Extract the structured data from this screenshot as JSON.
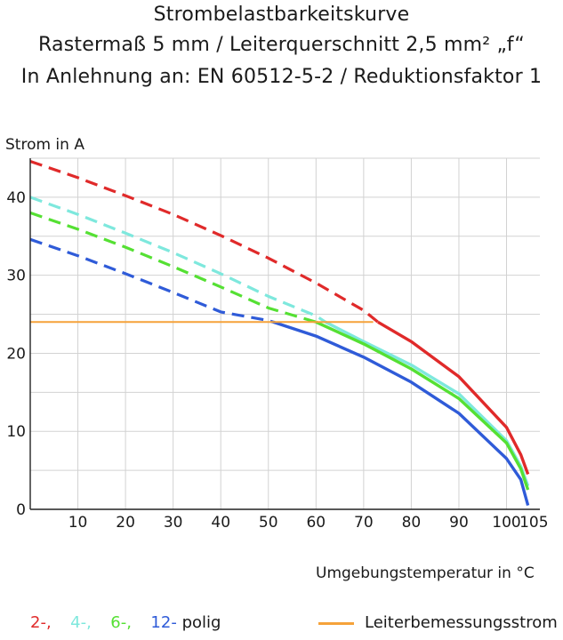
{
  "header": {
    "line1": "Strombelastbarkeitskurve",
    "line2": "Rastermaß 5 mm / Leiterquerschnitt 2,5 mm² „f“",
    "line3": "In Anlehnung an: EN 60512-5-2 / Reduktionsfaktor 1"
  },
  "chart_data": {
    "type": "line",
    "title": "Strombelastbarkeitskurve",
    "xlabel": "Umgebungstemperatur in °C",
    "ylabel": "Strom in A",
    "xlim": [
      0,
      107
    ],
    "ylim": [
      0,
      45
    ],
    "xticks": [
      10,
      20,
      30,
      40,
      50,
      60,
      70,
      80,
      90,
      100,
      105
    ],
    "yticks": [
      0,
      10,
      20,
      30,
      40
    ],
    "grid": true,
    "legend_position": "bottom",
    "series": [
      {
        "name": "2-",
        "color": "#e02a2a",
        "dashed_x": [
          0,
          10,
          20,
          30,
          40,
          50,
          60,
          70,
          73
        ],
        "dashed_y": [
          44.6,
          42.5,
          40.2,
          37.8,
          35.1,
          32.2,
          29.0,
          25.5,
          24.0
        ],
        "solid_x": [
          73,
          80,
          90,
          100,
          103,
          104.5
        ],
        "solid_y": [
          24.0,
          21.5,
          17.0,
          10.5,
          7.0,
          4.5
        ]
      },
      {
        "name": "4-",
        "color": "#7ee8dd",
        "dashed_x": [
          0,
          10,
          20,
          30,
          40,
          50,
          60,
          62
        ],
        "dashed_y": [
          40.0,
          37.8,
          35.4,
          32.9,
          30.2,
          27.3,
          24.8,
          24.0
        ],
        "solid_x": [
          62,
          70,
          80,
          90,
          100,
          103,
          104.5
        ],
        "solid_y": [
          24.0,
          21.5,
          18.5,
          14.8,
          8.8,
          5.5,
          3.0
        ]
      },
      {
        "name": "6-",
        "color": "#55e033",
        "dashed_x": [
          0,
          10,
          20,
          30,
          40,
          50,
          60
        ],
        "dashed_y": [
          38.0,
          35.9,
          33.6,
          31.1,
          28.5,
          25.8,
          24.0
        ],
        "solid_x": [
          60,
          70,
          80,
          90,
          100,
          103,
          104.5
        ],
        "solid_y": [
          24.0,
          21.2,
          18.0,
          14.2,
          8.5,
          5.2,
          2.5
        ]
      },
      {
        "name": "12-",
        "color": "#2f5bd8",
        "dashed_x": [
          0,
          10,
          20,
          30,
          40,
          50,
          51
        ],
        "dashed_y": [
          34.6,
          32.5,
          30.2,
          27.8,
          25.3,
          24.2,
          24.0
        ],
        "solid_x": [
          51,
          60,
          70,
          80,
          90,
          100,
          103,
          104.5
        ],
        "solid_y": [
          24.0,
          22.2,
          19.5,
          16.3,
          12.3,
          6.5,
          3.8,
          0.5
        ]
      },
      {
        "name": "Leiterbemessungsstrom",
        "color": "#f5a23a",
        "solid_x": [
          0,
          72
        ],
        "solid_y": [
          24,
          24
        ]
      }
    ]
  },
  "legend": {
    "poles": [
      {
        "text": "2-,",
        "color": "#e02a2a"
      },
      {
        "text": "4-,",
        "color": "#7ee8dd"
      },
      {
        "text": "6-,",
        "color": "#55e033"
      },
      {
        "text": "12-",
        "color": "#2f5bd8"
      }
    ],
    "poles_suffix": "polig",
    "rated_label": "Leiterbemessungsstrom",
    "rated_color": "#f5a23a"
  }
}
